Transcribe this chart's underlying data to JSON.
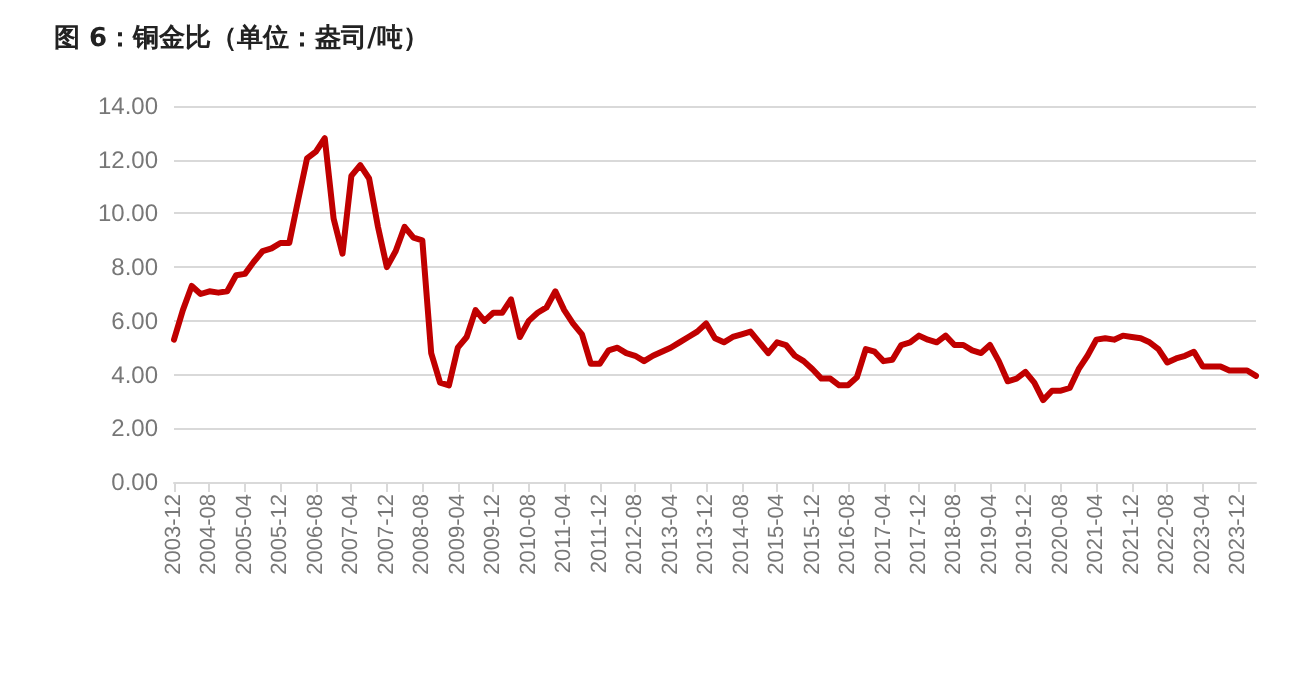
{
  "chart_data": {
    "type": "line",
    "title": "图 6：铜金比（单位：盎司/吨）",
    "categories": [
      "2003-12",
      null,
      null,
      null,
      "2004-08",
      null,
      null,
      null,
      "2005-04",
      null,
      null,
      null,
      "2005-12",
      null,
      null,
      null,
      "2006-08",
      null,
      null,
      null,
      "2007-04",
      null,
      null,
      null,
      "2007-12",
      null,
      null,
      null,
      "2008-08",
      null,
      null,
      null,
      "2009-04",
      null,
      null,
      null,
      "2009-12",
      null,
      null,
      null,
      "2010-08",
      null,
      null,
      null,
      "2011-04",
      null,
      null,
      null,
      "2011-12",
      null,
      null,
      null,
      "2012-08",
      null,
      null,
      null,
      "2013-04",
      null,
      null,
      null,
      "2013-12",
      null,
      null,
      null,
      "2014-08",
      null,
      null,
      null,
      "2015-04",
      null,
      null,
      null,
      "2015-12",
      null,
      null,
      null,
      "2016-08",
      null,
      null,
      null,
      "2017-04",
      null,
      null,
      null,
      "2017-12",
      null,
      null,
      null,
      "2018-08",
      null,
      null,
      null,
      "2019-04",
      null,
      null,
      null,
      "2019-12",
      null,
      null,
      null,
      "2020-08",
      null,
      null,
      null,
      "2021-04",
      null,
      null,
      null,
      "2021-12",
      null,
      null,
      null,
      "2022-08",
      null,
      null,
      null,
      "2023-04",
      null,
      null,
      null,
      "2023-12",
      null,
      null
    ],
    "series": [
      {
        "color": "#c00000",
        "values": [
          5.3,
          6.4,
          7.3,
          7.0,
          7.1,
          7.05,
          7.1,
          7.7,
          7.75,
          8.2,
          8.6,
          8.7,
          8.9,
          8.9,
          10.5,
          12.05,
          12.3,
          12.8,
          9.8,
          8.5,
          11.4,
          11.8,
          11.3,
          9.5,
          8.0,
          8.6,
          9.5,
          9.1,
          9.0,
          4.8,
          3.7,
          3.6,
          5.0,
          5.4,
          6.4,
          6.0,
          6.3,
          6.3,
          6.8,
          5.4,
          6.0,
          6.3,
          6.5,
          7.1,
          6.4,
          5.9,
          5.5,
          4.4,
          4.4,
          4.9,
          5.0,
          4.8,
          4.7,
          4.5,
          4.7,
          4.85,
          5.0,
          5.2,
          5.4,
          5.6,
          5.9,
          5.35,
          5.2,
          5.4,
          5.5,
          5.6,
          5.2,
          4.8,
          5.2,
          5.1,
          4.7,
          4.5,
          4.2,
          3.85,
          3.85,
          3.6,
          3.6,
          3.9,
          4.95,
          4.85,
          4.5,
          4.55,
          5.1,
          5.2,
          5.45,
          5.3,
          5.2,
          5.45,
          5.1,
          5.1,
          4.9,
          4.8,
          5.1,
          4.5,
          3.75,
          3.85,
          4.1,
          3.7,
          3.05,
          3.4,
          3.4,
          3.5,
          4.2,
          4.7,
          5.3,
          5.35,
          5.3,
          5.45,
          5.4,
          5.35,
          5.2,
          4.95,
          4.45,
          4.6,
          4.7,
          4.85,
          4.3,
          4.3,
          4.3,
          4.15,
          4.15,
          4.15,
          3.95
        ]
      }
    ],
    "ylim": [
      0,
      14
    ],
    "yticks": [
      {
        "value": 0,
        "label": "0.00"
      },
      {
        "value": 2,
        "label": "2.00"
      },
      {
        "value": 4,
        "label": "4.00"
      },
      {
        "value": 6,
        "label": "6.00"
      },
      {
        "value": 8,
        "label": "8.00"
      },
      {
        "value": 10,
        "label": "10.00"
      },
      {
        "value": 12,
        "label": "12.00"
      },
      {
        "value": 14,
        "label": "14.00"
      }
    ],
    "grid": "y",
    "marker": "none",
    "line_style": "solid"
  }
}
